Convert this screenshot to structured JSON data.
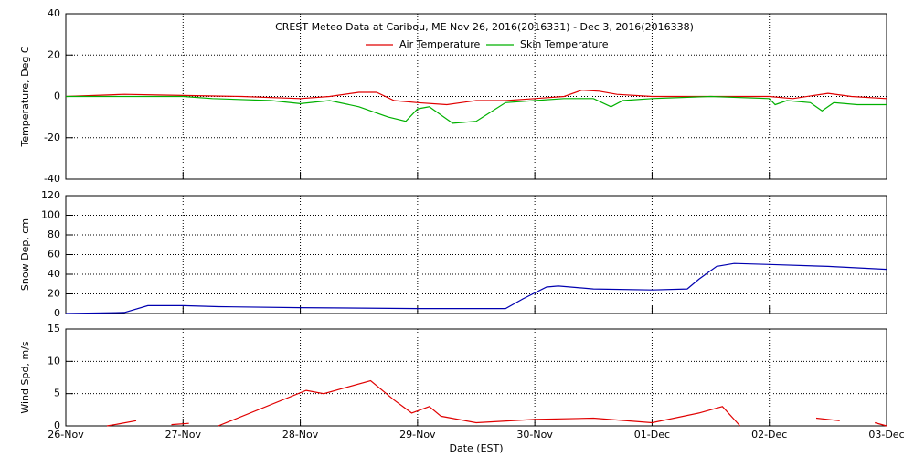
{
  "chart_data": [
    {
      "type": "line",
      "title": "CREST Meteo Data at Caribou, ME   Nov 26, 2016(2016331) - Dec  3, 2016(2016338)",
      "ylabel": "Temperature, Deg C",
      "xlim": [
        0,
        7
      ],
      "ylim": [
        -40,
        40
      ],
      "xticks": [
        0,
        1,
        2,
        3,
        4,
        5,
        6,
        7
      ],
      "yticks": [
        -40,
        -20,
        0,
        20,
        40
      ],
      "grid": true,
      "legend": "top",
      "series": [
        {
          "name": "Air Temperature",
          "color": "#e00000",
          "x": [
            0,
            0.5,
            1,
            1.5,
            2,
            2.25,
            2.5,
            2.65,
            2.8,
            3,
            3.25,
            3.5,
            3.75,
            4,
            4.25,
            4.4,
            4.55,
            4.7,
            5,
            5.5,
            6,
            6.2,
            6.5,
            6.7,
            7
          ],
          "values": [
            0,
            1,
            0.5,
            0,
            -1,
            0,
            2,
            2,
            -2,
            -3,
            -4,
            -2,
            -2,
            -1,
            0,
            3,
            2.5,
            1,
            0,
            0,
            0,
            -1,
            1.5,
            0,
            -1
          ]
        },
        {
          "name": "Skin Temperature",
          "color": "#00b000",
          "x": [
            0,
            0.5,
            1,
            1.25,
            1.75,
            2,
            2.25,
            2.5,
            2.75,
            2.9,
            3,
            3.1,
            3.3,
            3.5,
            3.75,
            4,
            4.25,
            4.5,
            4.65,
            4.75,
            5,
            5.5,
            6,
            6.05,
            6.15,
            6.35,
            6.45,
            6.55,
            6.75,
            7
          ],
          "values": [
            0,
            0,
            0,
            -1,
            -2,
            -3.5,
            -2,
            -5,
            -10,
            -12,
            -6,
            -5,
            -13,
            -12,
            -3,
            -2,
            -1,
            -1,
            -5,
            -2,
            -1,
            0,
            -1,
            -4,
            -2,
            -3,
            -7,
            -3,
            -4,
            -4
          ]
        }
      ]
    },
    {
      "type": "line",
      "ylabel": "Snow Dep, cm",
      "xlim": [
        0,
        7
      ],
      "ylim": [
        0,
        120
      ],
      "xticks": [
        0,
        1,
        2,
        3,
        4,
        5,
        6,
        7
      ],
      "yticks": [
        0,
        20,
        40,
        60,
        80,
        100,
        120
      ],
      "grid": true,
      "series": [
        {
          "color": "#0000b0",
          "x": [
            0,
            0.5,
            0.7,
            1,
            1.3,
            2,
            3,
            3.75,
            3.9,
            4.1,
            4.2,
            4.5,
            5,
            5.3,
            5.4,
            5.55,
            5.7,
            6,
            6.5,
            7
          ],
          "values": [
            0,
            1,
            8,
            8,
            7,
            6,
            5,
            5,
            15,
            27,
            28,
            25,
            24,
            25,
            35,
            48,
            51,
            50,
            48,
            45
          ]
        }
      ]
    },
    {
      "type": "line",
      "ylabel": "Wind Spd, m/s",
      "xlabel": "Date (EST)",
      "xlim": [
        0,
        7
      ],
      "ylim": [
        0,
        15
      ],
      "xticks": [
        {
          "value": 0,
          "label": "26-Nov"
        },
        {
          "value": 1,
          "label": "27-Nov"
        },
        {
          "value": 2,
          "label": "28-Nov"
        },
        {
          "value": 3,
          "label": "29-Nov"
        },
        {
          "value": 4,
          "label": "30-Nov"
        },
        {
          "value": 5,
          "label": "01-Dec"
        },
        {
          "value": 6,
          "label": "02-Dec"
        },
        {
          "value": 7,
          "label": "03-Dec"
        }
      ],
      "yticks": [
        0,
        5,
        10,
        15
      ],
      "grid": true,
      "series": [
        {
          "color": "#e00000",
          "x": [
            0.35,
            0.45,
            0.6,
            0.65,
            0.9,
            1.05,
            1.2,
            1.3,
            2.05,
            2.2,
            2.4,
            2.6,
            2.8,
            2.95,
            3.1,
            3.2,
            3.5,
            4,
            4.5,
            5,
            5.4,
            5.6,
            5.7,
            5.75,
            6,
            6.4,
            6.6,
            6.7,
            6.9,
            7
          ],
          "values": [
            0,
            0.3,
            0.8,
            null,
            0.2,
            0.4,
            null,
            0,
            5.5,
            5,
            6,
            7,
            4,
            2,
            3,
            1.5,
            0.5,
            1,
            1.2,
            0.5,
            2,
            3,
            1,
            0,
            null,
            1.2,
            0.8,
            null,
            0.5,
            0
          ]
        }
      ]
    }
  ]
}
